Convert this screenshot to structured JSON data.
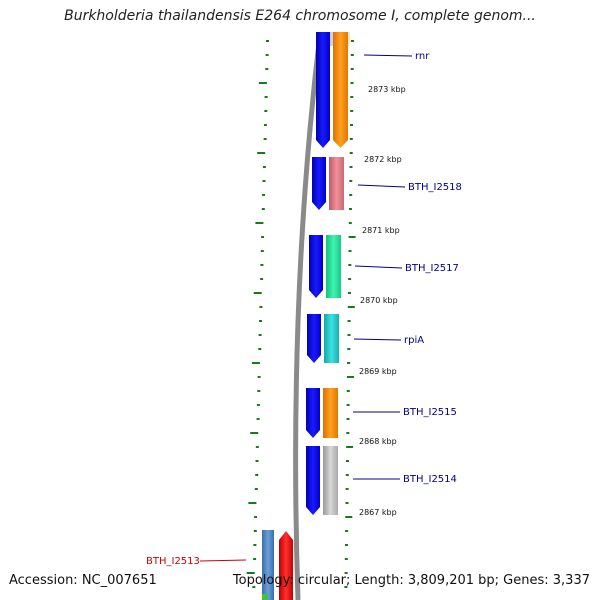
{
  "title": "Burkholderia thailandensis E264 chromosome I, complete genom...",
  "footer": {
    "accession": "Accession: NC_007651",
    "summary": "Topology: circular; Length: 3,809,201 bp; Genes: 3,337"
  },
  "colors": {
    "forward_cds": "#0000ee",
    "backbone": "#8a8a8a",
    "tick": "#1a7a1a",
    "gene_label": "#00008b",
    "highlight_label": "#cc0000",
    "highlight_feature": "#ee0000"
  },
  "scale_labels": [
    "2873 kbp",
    "2872 kbp",
    "2871 kbp",
    "2870 kbp",
    "2869 kbp",
    "2868 kbp",
    "2867 kbp"
  ],
  "genes": [
    {
      "name": "rnr",
      "color": "#ff8c00"
    },
    {
      "name": "BTH_I2518",
      "color": "#e07b86"
    },
    {
      "name": "BTH_I2517",
      "color": "#22e39a"
    },
    {
      "name": "rpiA",
      "color": "#20c8c8"
    },
    {
      "name": "BTH_I2515",
      "color": "#ff8c00"
    },
    {
      "name": "BTH_I2514",
      "color": "#bdbdbd"
    }
  ],
  "highlight_gene": {
    "name": "BTH_I2513"
  }
}
